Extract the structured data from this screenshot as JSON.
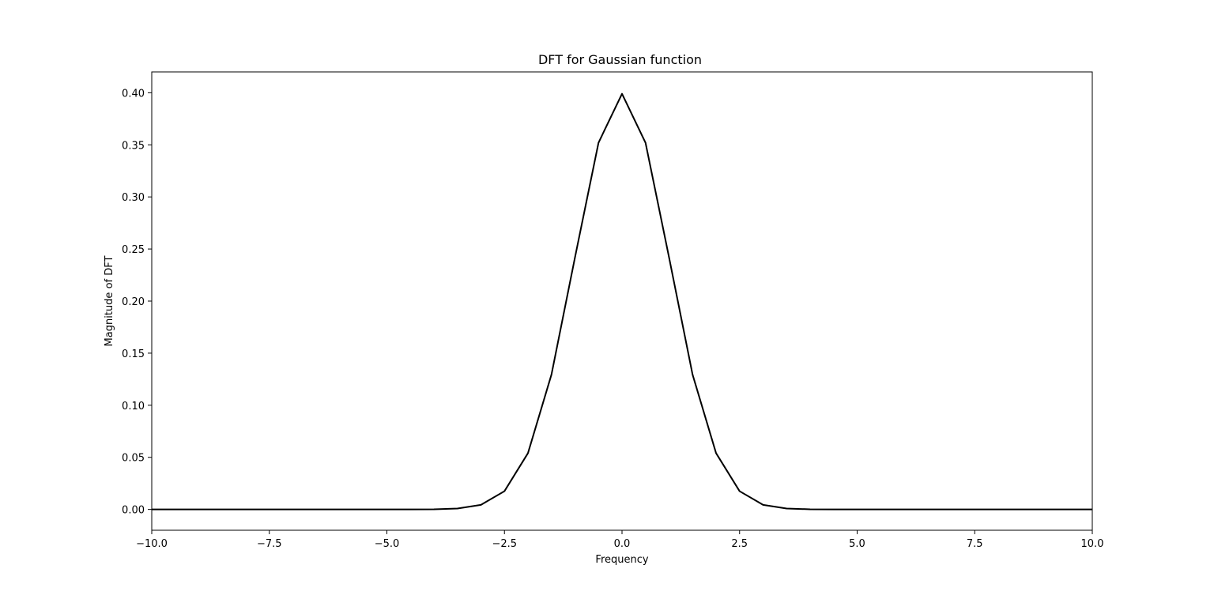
{
  "chart_data": {
    "type": "line",
    "title": "DFT for Gaussian function",
    "xlabel": "Frequency",
    "ylabel": "Magnitude of DFT",
    "xlim": [
      -10,
      10
    ],
    "ylim": [
      -0.02,
      0.42
    ],
    "xticks": [
      -10,
      -7.5,
      -5,
      -2.5,
      0,
      2.5,
      5,
      7.5,
      10
    ],
    "xtick_labels": [
      "−10.0",
      "−7.5",
      "−5.0",
      "−2.5",
      "0.0",
      "2.5",
      "5.0",
      "7.5",
      "10.0"
    ],
    "yticks": [
      0,
      0.05,
      0.1,
      0.15,
      0.2,
      0.25,
      0.3,
      0.35,
      0.4
    ],
    "ytick_labels": [
      "0.00",
      "0.05",
      "0.10",
      "0.15",
      "0.20",
      "0.25",
      "0.30",
      "0.35",
      "0.40"
    ],
    "grid": false,
    "line_color": "#000000",
    "series": [
      {
        "x": [
          -10,
          -9.5,
          -9,
          -8.5,
          -8,
          -7.5,
          -7,
          -6.5,
          -6,
          -5.5,
          -5,
          -4.5,
          -4,
          -3.5,
          -3,
          -2.5,
          -2,
          -1.5,
          -1,
          -0.5,
          0,
          0.5,
          1,
          1.5,
          2,
          2.5,
          3,
          3.5,
          4,
          4.5,
          5,
          5.5,
          6,
          6.5,
          7,
          7.5,
          8,
          8.5,
          9,
          9.5,
          10
        ],
        "values": [
          0,
          0,
          0,
          0,
          0,
          0,
          0,
          0,
          0,
          0,
          0,
          0,
          0.0001,
          0.0009,
          0.0044,
          0.0175,
          0.054,
          0.1295,
          0.242,
          0.352,
          0.399,
          0.352,
          0.242,
          0.1295,
          0.054,
          0.0175,
          0.0044,
          0.0009,
          0.0001,
          0,
          0,
          0,
          0,
          0,
          0,
          0,
          0,
          0,
          0,
          0,
          0
        ]
      }
    ]
  }
}
